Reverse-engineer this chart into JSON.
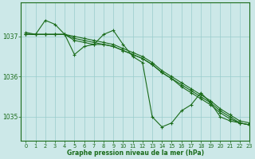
{
  "background_color": "#cce8e8",
  "grid_color": "#99cccc",
  "line_color": "#1a6b1a",
  "marker_color": "#1a6b1a",
  "title": "Graphe pression niveau de la mer (hPa)",
  "xlim": [
    -0.5,
    23
  ],
  "ylim": [
    1034.4,
    1037.85
  ],
  "yticks": [
    1035,
    1036,
    1037
  ],
  "xticks": [
    0,
    1,
    2,
    3,
    4,
    5,
    6,
    7,
    8,
    9,
    10,
    11,
    12,
    13,
    14,
    15,
    16,
    17,
    18,
    19,
    20,
    21,
    22,
    23
  ],
  "series": [
    [
      1037.1,
      1037.05,
      1037.4,
      1037.3,
      1037.05,
      1036.55,
      1036.75,
      1036.8,
      1037.05,
      1037.15,
      1036.8,
      1036.5,
      1036.35,
      1035.0,
      1034.75,
      1034.85,
      1035.15,
      1035.3,
      1035.6,
      1035.35,
      1035.0,
      1034.9,
      1034.85,
      1034.8
    ],
    [
      1037.05,
      1037.05,
      1037.05,
      1037.05,
      1037.05,
      1036.9,
      1036.85,
      1036.8,
      1036.8,
      1036.75,
      1036.65,
      1036.55,
      1036.45,
      1036.3,
      1036.1,
      1035.95,
      1035.75,
      1035.6,
      1035.45,
      1035.3,
      1035.1,
      1034.95,
      1034.85,
      1034.8
    ],
    [
      1037.05,
      1037.05,
      1037.05,
      1037.05,
      1037.05,
      1036.95,
      1036.9,
      1036.85,
      1036.8,
      1036.75,
      1036.65,
      1036.55,
      1036.45,
      1036.3,
      1036.1,
      1035.95,
      1035.8,
      1035.65,
      1035.5,
      1035.35,
      1035.15,
      1035.0,
      1034.85,
      1034.8
    ],
    [
      1037.05,
      1037.05,
      1037.05,
      1037.05,
      1037.05,
      1037.0,
      1036.95,
      1036.9,
      1036.85,
      1036.8,
      1036.7,
      1036.6,
      1036.5,
      1036.35,
      1036.15,
      1036.0,
      1035.85,
      1035.7,
      1035.55,
      1035.4,
      1035.2,
      1035.05,
      1034.9,
      1034.85
    ]
  ]
}
